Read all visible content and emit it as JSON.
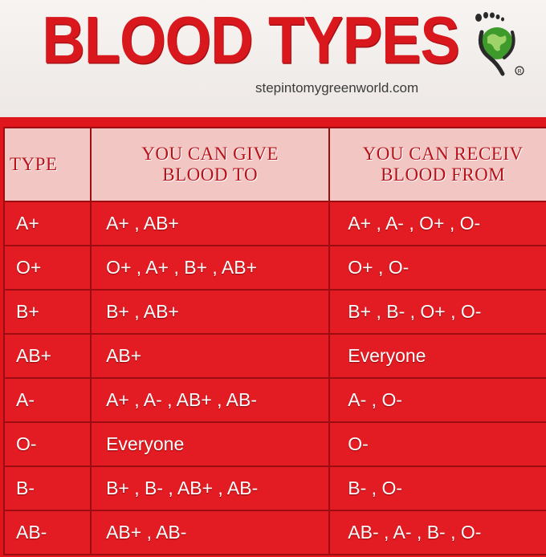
{
  "header": {
    "title": "BLOOD TYPES",
    "website": "stepintomygreenworld.com",
    "logo_icon": "footprint-globe-icon"
  },
  "table": {
    "headers": {
      "type": "TYPE",
      "give_line1": "YOU CAN GIVE",
      "give_line2": "BLOOD TO",
      "receive_line1": "YOU CAN RECEIV",
      "receive_line2": "BLOOD FROM"
    },
    "rows": [
      {
        "type": "A+",
        "give": "A+ , AB+",
        "receive": "A+ , A- , O+ , O-"
      },
      {
        "type": "O+",
        "give": "O+ , A+ , B+ , AB+",
        "receive": "O+ , O-"
      },
      {
        "type": "B+",
        "give": "B+ , AB+",
        "receive": "B+ , B- , O+ , O-"
      },
      {
        "type": "AB+",
        "give": "AB+",
        "receive": "Everyone"
      },
      {
        "type": "A-",
        "give": "A+ , A- , AB+ , AB-",
        "receive": "A- , O-"
      },
      {
        "type": "O-",
        "give": "Everyone",
        "receive": "O-"
      },
      {
        "type": "B-",
        "give": "B+ , B- , AB+ , AB-",
        "receive": "B- , O-"
      },
      {
        "type": "AB-",
        "give": "AB+ , AB-",
        "receive": "AB- , A- , B- , O-"
      }
    ]
  },
  "colors": {
    "title_red": "#d9181e",
    "table_red": "#e31b22",
    "header_pink": "#f2c6c3",
    "logo_green": "#3f9a2c"
  }
}
